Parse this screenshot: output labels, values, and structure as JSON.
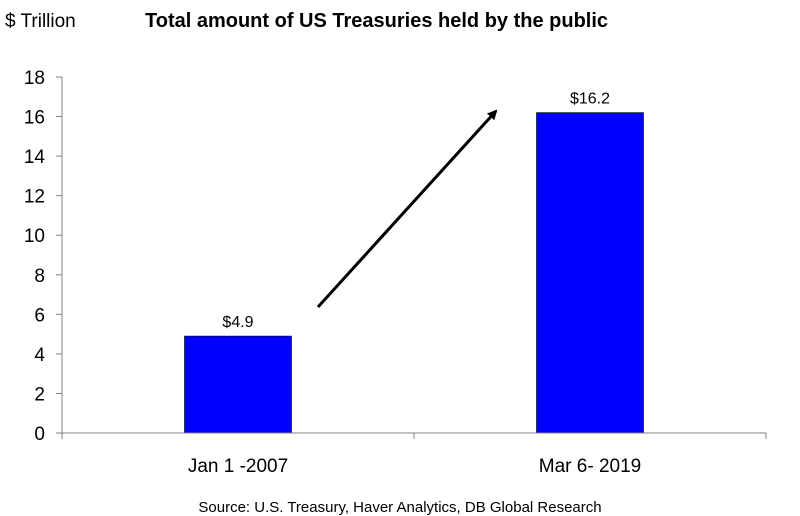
{
  "chart_data": {
    "type": "bar",
    "title": "Total amount of US Treasuries held by the public",
    "unit_label": "$ Trillion",
    "categories": [
      "Jan 1 -2007",
      "Mar 6- 2019"
    ],
    "values": [
      4.9,
      16.2
    ],
    "data_labels": [
      "$4.9",
      "$16.2"
    ],
    "ylim": [
      0,
      18
    ],
    "yticks": [
      0,
      2,
      4,
      6,
      8,
      10,
      12,
      14,
      16,
      18
    ],
    "ytick_labels": [
      "0",
      "2",
      "4",
      "6",
      "8",
      "10",
      "12",
      "14",
      "16",
      "18"
    ],
    "grid": false,
    "legend": "none",
    "bar_color": "#0000FF",
    "annotation": "upward arrow from first bar toward second bar",
    "source": "Source: U.S. Treasury, Haver Analytics, DB Global Research"
  }
}
